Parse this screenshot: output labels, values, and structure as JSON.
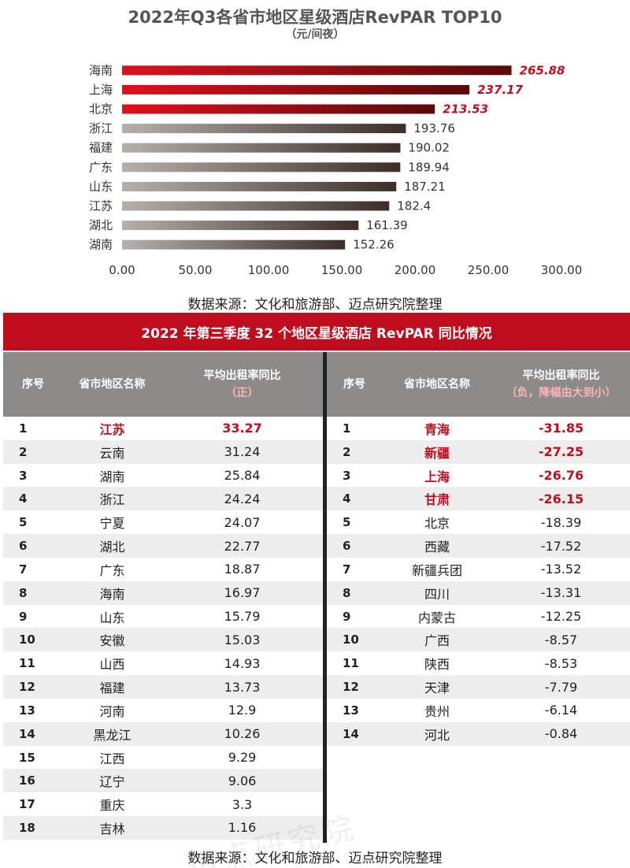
{
  "chart_data": {
    "type": "bar",
    "orientation": "horizontal",
    "title": "2022年Q3各省市地区星级酒店RevPAR TOP10",
    "subtitle": "（元/间夜）",
    "categories": [
      "海南",
      "上海",
      "北京",
      "浙江",
      "福建",
      "广东",
      "山东",
      "江苏",
      "湖北",
      "湖南"
    ],
    "values": [
      265.88,
      237.17,
      213.53,
      193.76,
      190.02,
      189.94,
      187.21,
      182.4,
      161.39,
      152.26
    ],
    "value_labels": [
      "265.88",
      "237.17",
      "213.53",
      "193.76",
      "190.02",
      "189.94",
      "187.21",
      "182.4",
      "161.39",
      "152.26"
    ],
    "highlighted": [
      true,
      true,
      true,
      false,
      false,
      false,
      false,
      false,
      false,
      false
    ],
    "xlim": [
      0,
      300
    ],
    "xticks": [
      "0.00",
      "50.00",
      "100.00",
      "150.00",
      "200.00",
      "250.00",
      "300.00"
    ],
    "grid": false,
    "legend": "none"
  },
  "colors": {
    "accent_red": "#c00d1e",
    "header_gray": "#8d8a8a",
    "bar_red_start": "#e0101c",
    "bar_red_end": "#5a0a0a",
    "bar_gray_start": "#b5b0ac",
    "bar_gray_end": "#3c2e29"
  },
  "source_top": "数据来源：文化和旅游部、迈点研究院整理",
  "table": {
    "title": "2022 年第三季度 32 个地区星级酒店 RevPAR 同比情况",
    "left": {
      "headers": {
        "idx": "序号",
        "name": "省市地区名称",
        "value": "平均出租率同比",
        "value_sub": "（正）"
      },
      "rows": [
        {
          "idx": "1",
          "name": "江苏",
          "value": "33.27",
          "hl": true
        },
        {
          "idx": "2",
          "name": "云南",
          "value": "31.24",
          "hl": false
        },
        {
          "idx": "3",
          "name": "湖南",
          "value": "25.84",
          "hl": false
        },
        {
          "idx": "4",
          "name": "浙江",
          "value": "24.24",
          "hl": false
        },
        {
          "idx": "5",
          "name": "宁夏",
          "value": "24.07",
          "hl": false
        },
        {
          "idx": "6",
          "name": "湖北",
          "value": "22.77",
          "hl": false
        },
        {
          "idx": "7",
          "name": "广东",
          "value": "18.87",
          "hl": false
        },
        {
          "idx": "8",
          "name": "海南",
          "value": "16.97",
          "hl": false
        },
        {
          "idx": "9",
          "name": "山东",
          "value": "15.79",
          "hl": false
        },
        {
          "idx": "10",
          "name": "安徽",
          "value": "15.03",
          "hl": false
        },
        {
          "idx": "11",
          "name": "山西",
          "value": "14.93",
          "hl": false
        },
        {
          "idx": "12",
          "name": "福建",
          "value": "13.73",
          "hl": false
        },
        {
          "idx": "13",
          "name": "河南",
          "value": "12.9",
          "hl": false
        },
        {
          "idx": "14",
          "name": "黑龙江",
          "value": "10.26",
          "hl": false
        },
        {
          "idx": "15",
          "name": "江西",
          "value": "9.29",
          "hl": false
        },
        {
          "idx": "16",
          "name": "辽宁",
          "value": "9.06",
          "hl": false
        },
        {
          "idx": "17",
          "name": "重庆",
          "value": "3.3",
          "hl": false
        },
        {
          "idx": "18",
          "name": "吉林",
          "value": "1.16",
          "hl": false
        }
      ]
    },
    "right": {
      "headers": {
        "idx": "序号",
        "name": "省市地区名称",
        "value": "平均出租率同比",
        "value_sub": "（负，降幅由大到小）"
      },
      "rows": [
        {
          "idx": "1",
          "name": "青海",
          "value": "-31.85",
          "hl": true
        },
        {
          "idx": "2",
          "name": "新疆",
          "value": "-27.25",
          "hl": true
        },
        {
          "idx": "3",
          "name": "上海",
          "value": "-26.76",
          "hl": true
        },
        {
          "idx": "4",
          "name": "甘肃",
          "value": "-26.15",
          "hl": true
        },
        {
          "idx": "5",
          "name": "北京",
          "value": "-18.39",
          "hl": false
        },
        {
          "idx": "6",
          "name": "西藏",
          "value": "-17.52",
          "hl": false
        },
        {
          "idx": "7",
          "name": "新疆兵团",
          "value": "-13.52",
          "hl": false
        },
        {
          "idx": "8",
          "name": "四川",
          "value": "-13.31",
          "hl": false
        },
        {
          "idx": "9",
          "name": "内蒙古",
          "value": "-12.25",
          "hl": false
        },
        {
          "idx": "10",
          "name": "广西",
          "value": "-8.57",
          "hl": false
        },
        {
          "idx": "11",
          "name": "陕西",
          "value": "-8.53",
          "hl": false
        },
        {
          "idx": "12",
          "name": "天津",
          "value": "-7.79",
          "hl": false
        },
        {
          "idx": "13",
          "name": "贵州",
          "value": "-6.14",
          "hl": false
        },
        {
          "idx": "14",
          "name": "河北",
          "value": "-0.84",
          "hl": false
        }
      ]
    }
  },
  "watermark": "迈点研究院",
  "source_bottom": "数据来源：文化和旅游部、迈点研究院整理"
}
